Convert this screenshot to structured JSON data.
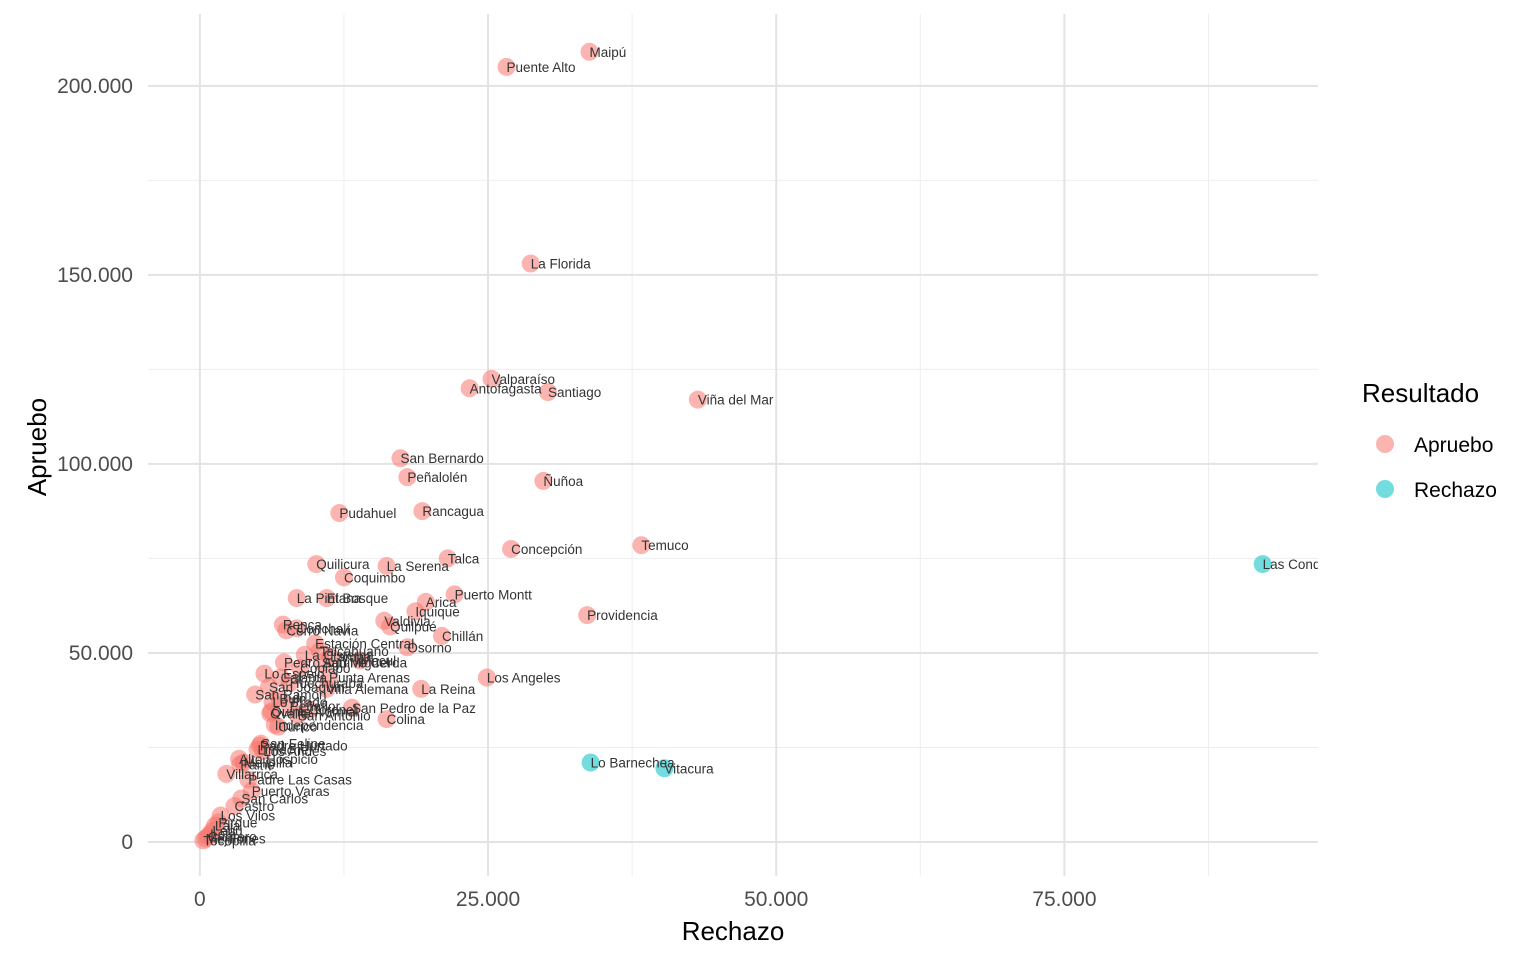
{
  "chart_data": {
    "type": "scatter",
    "xlabel": "Rechazo",
    "ylabel": "Apruebo",
    "xlim": [
      -4500,
      97000
    ],
    "ylim": [
      -9000,
      219000
    ],
    "x_ticks": [
      0,
      25000,
      50000,
      75000
    ],
    "x_tick_labels": [
      "0",
      "25.000",
      "50.000",
      "75.000"
    ],
    "y_ticks": [
      0,
      50000,
      100000,
      150000,
      200000
    ],
    "y_tick_labels": [
      "0",
      "50.000",
      "100.000",
      "150.000",
      "200.000"
    ],
    "grid": true,
    "legend": {
      "title": "Resultado",
      "position": "right",
      "entries": [
        {
          "name": "Apruebo",
          "color": "#F8766D"
        },
        {
          "name": "Rechazo",
          "color": "#00BFC4"
        }
      ]
    },
    "series": [
      {
        "name": "Apruebo",
        "color": "#F8766D",
        "points": [
          {
            "label": "Maipú",
            "x": 33800,
            "y": 209000
          },
          {
            "label": "Puente Alto",
            "x": 26600,
            "y": 205000
          },
          {
            "label": "La Florida",
            "x": 28700,
            "y": 153000
          },
          {
            "label": "Valparaíso",
            "x": 25300,
            "y": 122500
          },
          {
            "label": "Antofagasta",
            "x": 23400,
            "y": 120000
          },
          {
            "label": "Santiago",
            "x": 30200,
            "y": 119000
          },
          {
            "label": "Viña del Mar",
            "x": 43200,
            "y": 117000
          },
          {
            "label": "San Bernardo",
            "x": 17400,
            "y": 101500
          },
          {
            "label": "Peñalolén",
            "x": 18000,
            "y": 96500
          },
          {
            "label": "Ñuñoa",
            "x": 29800,
            "y": 95500
          },
          {
            "label": "Pudahuel",
            "x": 12100,
            "y": 87000
          },
          {
            "label": "Rancagua",
            "x": 19300,
            "y": 87500
          },
          {
            "label": "Temuco",
            "x": 38300,
            "y": 78500
          },
          {
            "label": "Concepción",
            "x": 27000,
            "y": 77500
          },
          {
            "label": "Talca",
            "x": 21500,
            "y": 75000
          },
          {
            "label": "Quilicura",
            "x": 10100,
            "y": 73500
          },
          {
            "label": "La Serena",
            "x": 16200,
            "y": 73000
          },
          {
            "label": "Coquimbo",
            "x": 12500,
            "y": 70000
          },
          {
            "label": "Puerto Montt",
            "x": 22100,
            "y": 65500
          },
          {
            "label": "La Pintana",
            "x": 8400,
            "y": 64500
          },
          {
            "label": "El Bosque",
            "x": 11000,
            "y": 64500
          },
          {
            "label": "Arica",
            "x": 19600,
            "y": 63500
          },
          {
            "label": "Providencia",
            "x": 33600,
            "y": 60000
          },
          {
            "label": "Iquique",
            "x": 18700,
            "y": 61000
          },
          {
            "label": "Valdivia",
            "x": 16000,
            "y": 58500
          },
          {
            "label": "Quilpué",
            "x": 16500,
            "y": 57000
          },
          {
            "label": "Renca",
            "x": 7200,
            "y": 57500
          },
          {
            "label": "Cerro Navia",
            "x": 7500,
            "y": 56000
          },
          {
            "label": "Chillán",
            "x": 21000,
            "y": 54500
          },
          {
            "label": "Estación Central",
            "x": 10000,
            "y": 52500
          },
          {
            "label": "Osorno",
            "x": 18000,
            "y": 51500
          },
          {
            "label": "Los Angeles",
            "x": 24900,
            "y": 43500
          },
          {
            "label": "La Reina",
            "x": 19200,
            "y": 40500
          },
          {
            "label": "Punta Arenas",
            "x": 11200,
            "y": 43500
          },
          {
            "label": "San Miguel",
            "x": 10600,
            "y": 47500
          },
          {
            "label": "San Ramón",
            "x": 4800,
            "y": 39000
          },
          {
            "label": "San Pedro de la Paz",
            "x": 13200,
            "y": 35500
          },
          {
            "label": "Colina",
            "x": 16200,
            "y": 32500
          },
          {
            "label": "Villa Alemana",
            "x": 11000,
            "y": 40500
          },
          {
            "label": "San Joaquín",
            "x": 6000,
            "y": 41000
          },
          {
            "label": "Lo Espejo",
            "x": 5600,
            "y": 44500
          },
          {
            "label": "Coronel",
            "x": 9500,
            "y": 35000
          },
          {
            "label": "Independencia",
            "x": 6500,
            "y": 31000
          },
          {
            "label": "Curicó",
            "x": 6800,
            "y": 30500
          },
          {
            "label": "Quinta Normal",
            "x": 6200,
            "y": 34500
          },
          {
            "label": "Lo Prado",
            "x": 6300,
            "y": 37000
          },
          {
            "label": "Peñaflor",
            "x": 7800,
            "y": 36000
          },
          {
            "label": "San Antonio",
            "x": 8500,
            "y": 33500
          },
          {
            "label": "Calama",
            "x": 7000,
            "y": 43500
          },
          {
            "label": "Ovalle",
            "x": 6100,
            "y": 34000
          },
          {
            "label": "Talcahuano",
            "x": 10400,
            "y": 50500
          },
          {
            "label": "Conchalí",
            "x": 8400,
            "y": 56500
          },
          {
            "label": "Lampa",
            "x": 11300,
            "y": 49000
          },
          {
            "label": "La Cisterna",
            "x": 9100,
            "y": 49500
          },
          {
            "label": "Pedro Aguirre Cerda",
            "x": 7300,
            "y": 47500
          },
          {
            "label": "Macul",
            "x": 13900,
            "y": 48000
          },
          {
            "label": "Huechuraba",
            "x": 7800,
            "y": 42000
          },
          {
            "label": "Buin",
            "x": 6900,
            "y": 38000
          },
          {
            "label": "Copiapó",
            "x": 8700,
            "y": 46000
          },
          {
            "label": "Padre Hurtado",
            "x": 5200,
            "y": 25500
          },
          {
            "label": "Limache",
            "x": 5000,
            "y": 24500
          },
          {
            "label": "San Felipe",
            "x": 5300,
            "y": 26000
          },
          {
            "label": "Los Andes",
            "x": 5500,
            "y": 24000
          },
          {
            "label": "Alto Hospicio",
            "x": 3400,
            "y": 22000
          },
          {
            "label": "Paine",
            "x": 3500,
            "y": 20500
          },
          {
            "label": "Villarrica",
            "x": 2300,
            "y": 18000
          },
          {
            "label": "Melipilla",
            "x": 3800,
            "y": 21000
          },
          {
            "label": "Padre Las Casas",
            "x": 4200,
            "y": 16500
          },
          {
            "label": "Puerto Varas",
            "x": 4500,
            "y": 13500
          },
          {
            "label": "San Carlos",
            "x": 3600,
            "y": 11500
          },
          {
            "label": "Castro",
            "x": 3000,
            "y": 9500
          },
          {
            "label": "Los Vilos",
            "x": 1800,
            "y": 7000
          },
          {
            "label": "Pirque",
            "x": 1600,
            "y": 5200
          },
          {
            "label": "Laja",
            "x": 1300,
            "y": 4300
          },
          {
            "label": "Lebu",
            "x": 1100,
            "y": 3000
          },
          {
            "label": "Lota",
            "x": 900,
            "y": 2100
          },
          {
            "label": "Cabrero",
            "x": 700,
            "y": 1500
          },
          {
            "label": "Mejillones",
            "x": 500,
            "y": 900
          },
          {
            "label": "Tocopilla",
            "x": 300,
            "y": 400
          }
        ]
      },
      {
        "name": "Rechazo",
        "color": "#00BFC4",
        "points": [
          {
            "label": "Las Condes",
            "x": 92200,
            "y": 73500
          },
          {
            "label": "Lo Barnechea",
            "x": 33900,
            "y": 21000
          },
          {
            "label": "Vitacura",
            "x": 40300,
            "y": 19500
          }
        ]
      }
    ]
  }
}
